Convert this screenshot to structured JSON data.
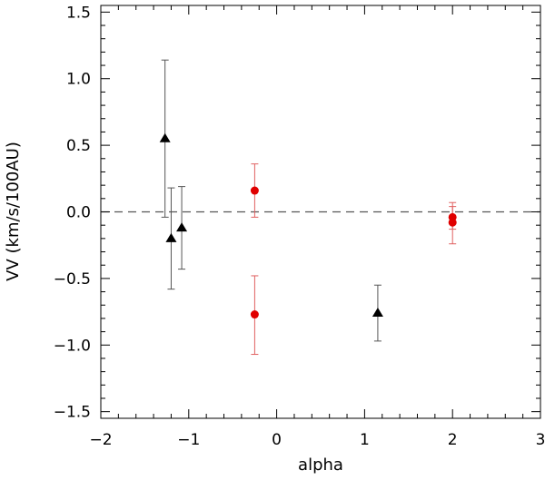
{
  "chart_data": {
    "type": "scatter",
    "title": "",
    "xlabel": "alpha",
    "ylabel": "VV (km/s/100AU)",
    "xlim": [
      -2,
      3
    ],
    "ylim": [
      -1.55,
      1.55
    ],
    "xticks": [
      -2,
      -1,
      0,
      1,
      2,
      3
    ],
    "xtick_labels": [
      "−2",
      "−1",
      "0",
      "1",
      "2",
      "3"
    ],
    "yticks": [
      -1.5,
      -1.0,
      -0.5,
      0.0,
      0.5,
      1.0,
      1.5
    ],
    "ytick_labels": [
      "−1.5",
      "−1.0",
      "−0.5",
      "0.0",
      "0.5",
      "1.0",
      "1.5"
    ],
    "reference_line": {
      "y": 0.0,
      "style": "dashed",
      "color": "#555555"
    },
    "grid": false,
    "legend": "none",
    "series": [
      {
        "marker": "triangle",
        "color": "#000000",
        "points": [
          {
            "x": -1.27,
            "y": 0.55,
            "ylo": -0.04,
            "yhi": 1.14
          },
          {
            "x": -1.2,
            "y": -0.2,
            "ylo": -0.58,
            "yhi": 0.18
          },
          {
            "x": -1.08,
            "y": -0.12,
            "ylo": -0.43,
            "yhi": 0.19
          },
          {
            "x": 1.15,
            "y": -0.76,
            "ylo": -0.97,
            "yhi": -0.55
          }
        ]
      },
      {
        "marker": "circle",
        "color": "#e00000",
        "points": [
          {
            "x": -0.25,
            "y": 0.16,
            "ylo": -0.04,
            "yhi": 0.36
          },
          {
            "x": -0.25,
            "y": -0.77,
            "ylo": -1.07,
            "yhi": -0.48
          },
          {
            "x": 2.0,
            "y": -0.04,
            "ylo": -0.13,
            "yhi": 0.07
          },
          {
            "x": 2.0,
            "y": -0.08,
            "ylo": -0.24,
            "yhi": 0.04
          }
        ]
      }
    ]
  }
}
